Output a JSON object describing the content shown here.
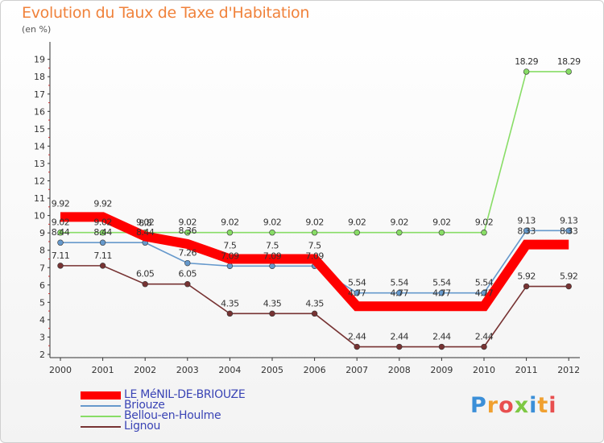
{
  "chart_data": {
    "type": "line",
    "title": "Evolution du Taux de Taxe d'Habitation",
    "subtitle": "(en %)",
    "x": [
      "2000",
      "2001",
      "2002",
      "2003",
      "2004",
      "2005",
      "2006",
      "2007",
      "2008",
      "2009",
      "2010",
      "2011",
      "2012"
    ],
    "ylim": [
      2,
      19
    ],
    "yticks": [
      2,
      3,
      4,
      5,
      6,
      7,
      8,
      9,
      10,
      11,
      12,
      13,
      14,
      15,
      16,
      17,
      18,
      19
    ],
    "grid": false,
    "legend_position": "bottom-left",
    "series": [
      {
        "name": "LE MéNIL-DE-BRIOUZE",
        "color": "#ff0000",
        "values": [
          9.92,
          9.92,
          8.8,
          8.36,
          7.5,
          7.5,
          7.5,
          4.77,
          4.77,
          4.77,
          4.77,
          8.33,
          8.33
        ],
        "labels": [
          "9.92",
          "9.92",
          "8.8",
          "8.36",
          "7.5",
          "7.5",
          "7.5",
          "4.77",
          "4.77",
          "4.77",
          "4.77",
          "8.33",
          "8.33"
        ]
      },
      {
        "name": "Briouze",
        "color": "#6699cc",
        "values": [
          8.44,
          8.44,
          8.44,
          7.26,
          7.09,
          7.09,
          7.09,
          5.54,
          5.54,
          5.54,
          5.54,
          9.13,
          9.13
        ],
        "labels": [
          "8.44",
          "8.44",
          "8.44",
          "7.26",
          "7.09",
          "7.09",
          "7.09",
          "5.54",
          "5.54",
          "5.54",
          "5.54",
          "9.13",
          "9.13"
        ]
      },
      {
        "name": "Bellou-en-Houlme",
        "color": "#88dd66",
        "values": [
          9.02,
          9.02,
          9.02,
          9.02,
          9.02,
          9.02,
          9.02,
          9.02,
          9.02,
          9.02,
          9.02,
          18.29,
          18.29
        ],
        "labels": [
          "9.02",
          "9.02",
          "9.02",
          "9.02",
          "9.02",
          "9.02",
          "9.02",
          "9.02",
          "9.02",
          "9.02",
          "9.02",
          "18.29",
          "18.29"
        ]
      },
      {
        "name": "Lignou",
        "color": "#773333",
        "values": [
          7.11,
          7.11,
          6.05,
          6.05,
          4.35,
          4.35,
          4.35,
          2.44,
          2.44,
          2.44,
          2.44,
          5.92,
          5.92
        ],
        "labels": [
          "7.11",
          "7.11",
          "6.05",
          "6.05",
          "4.35",
          "4.35",
          "4.35",
          "2.44",
          "2.44",
          "2.44",
          "2.44",
          "5.92",
          "5.92"
        ]
      }
    ]
  },
  "brand": {
    "text": "Proxiti"
  }
}
